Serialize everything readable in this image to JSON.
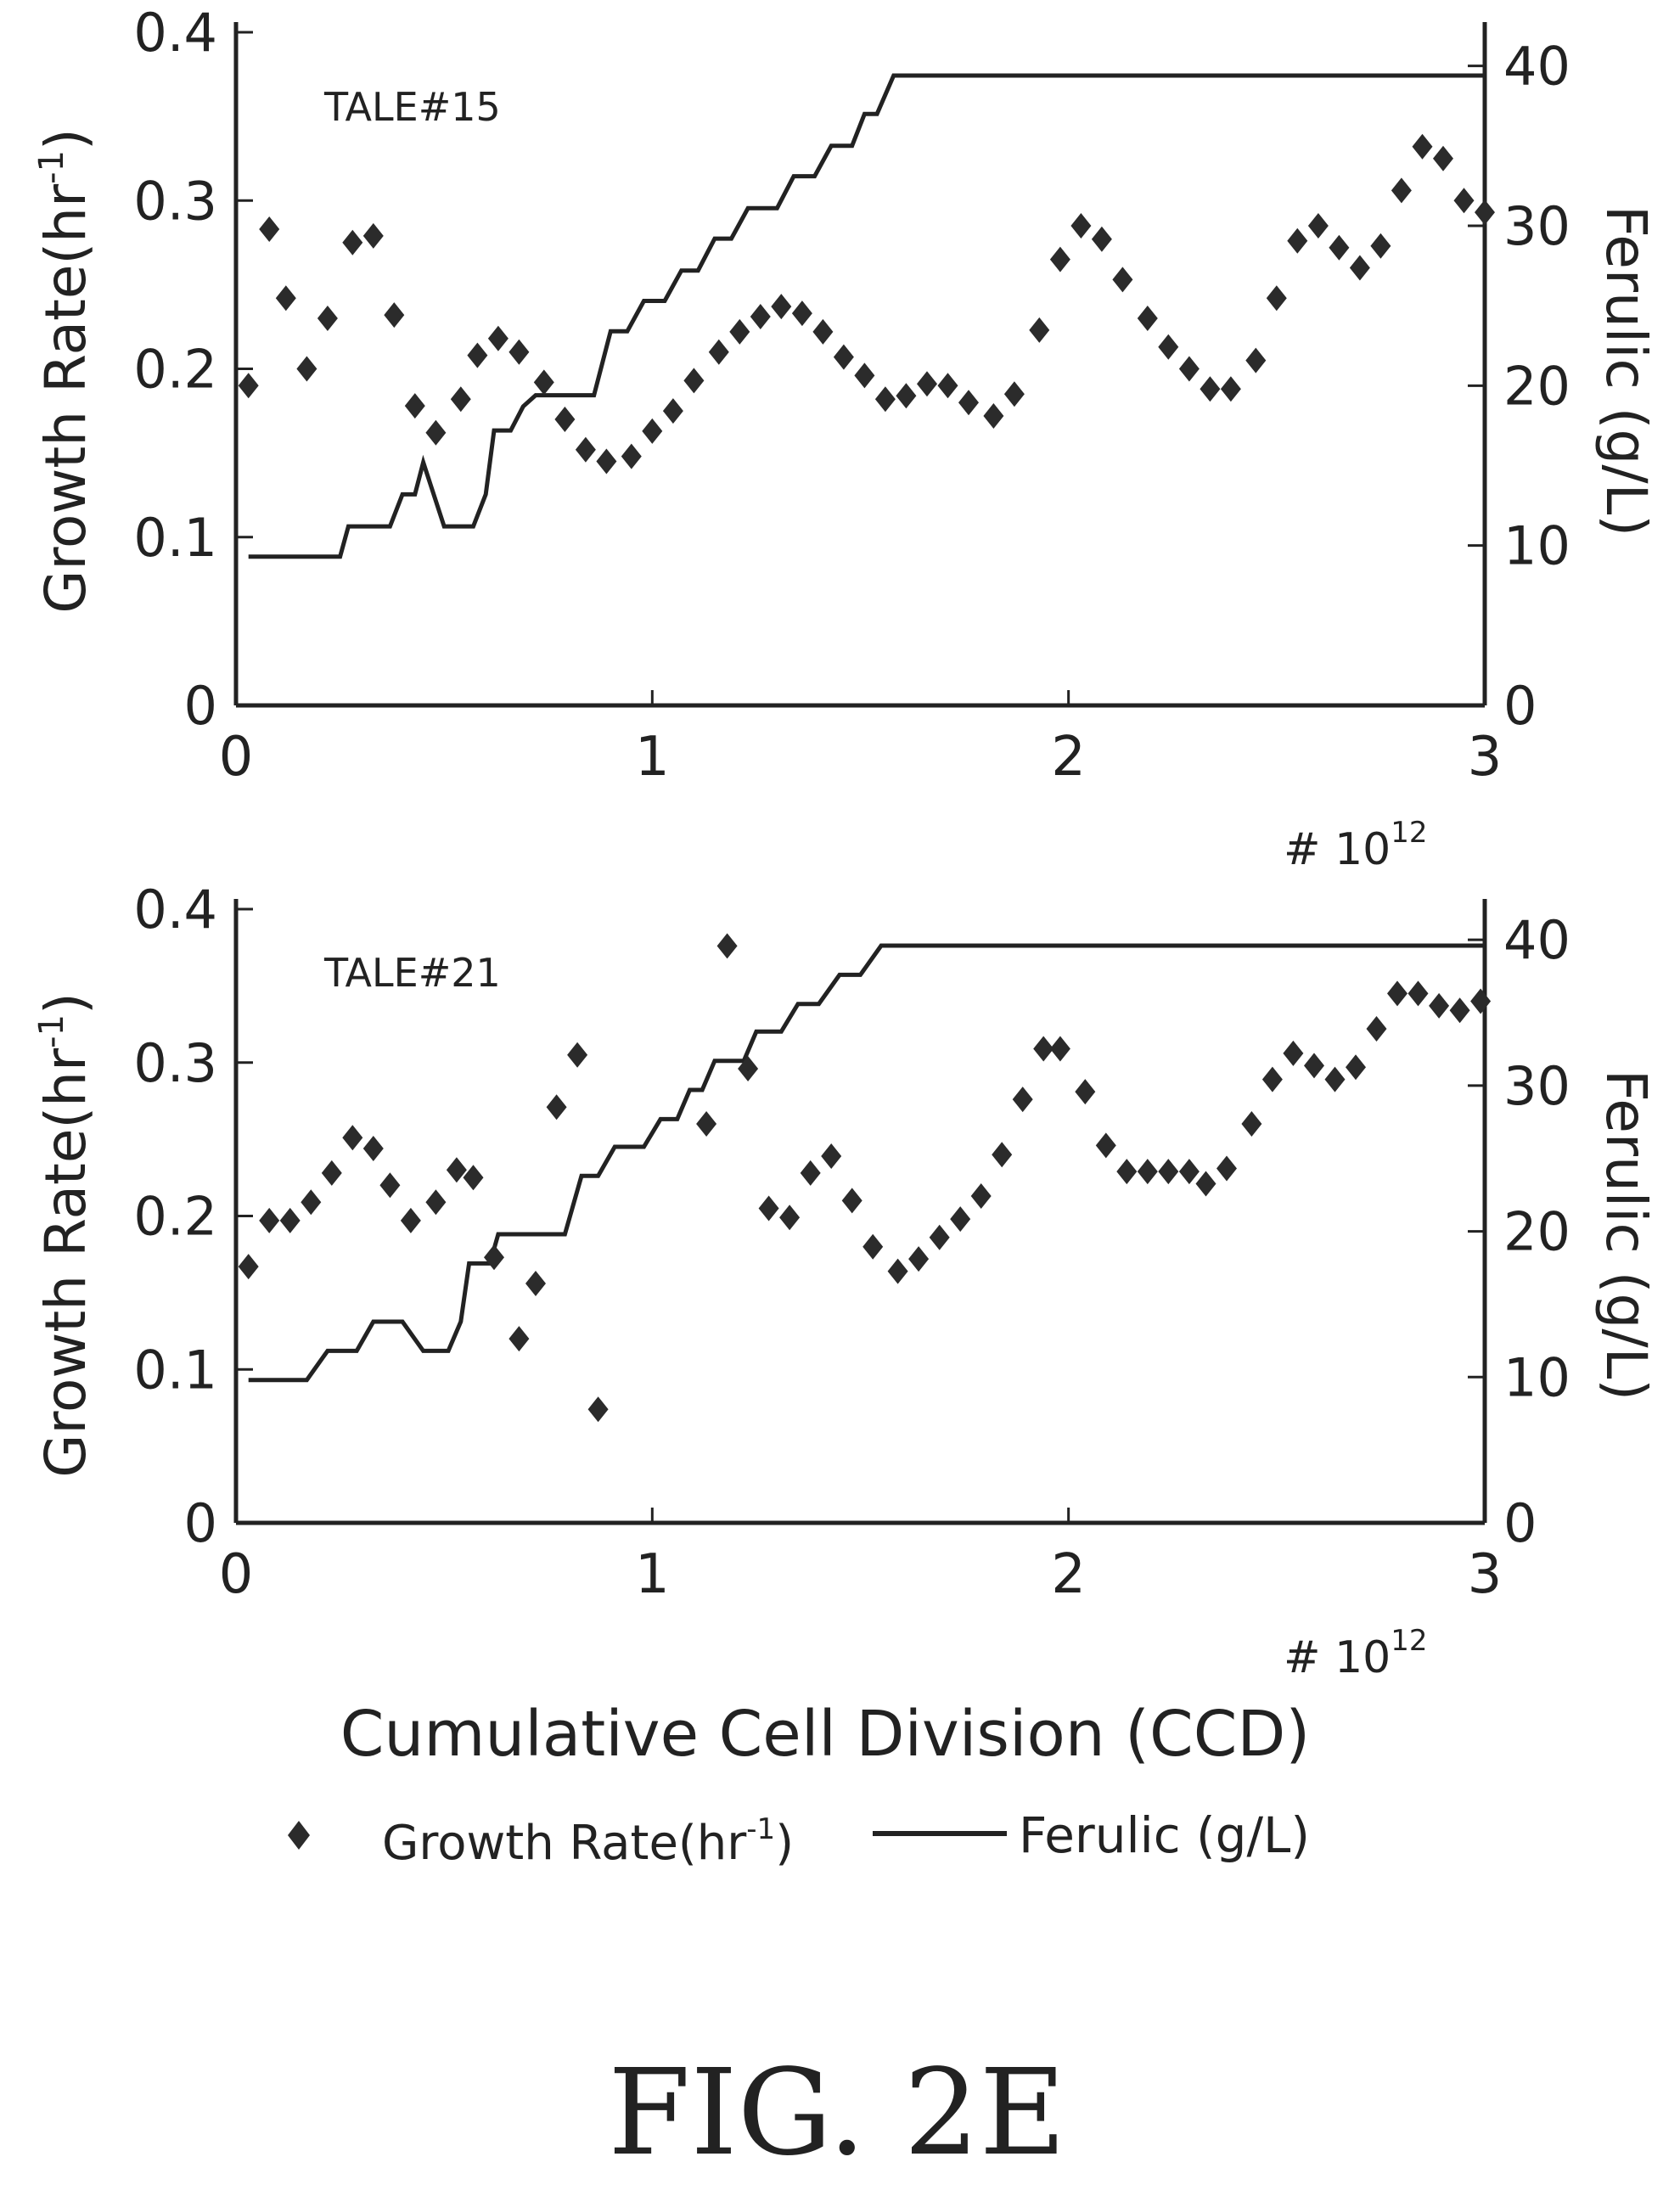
{
  "figure_label": "FIG. 2E",
  "xaxis_label": "Cumulative Cell Division (CCD)",
  "legend": {
    "growth_label": "Growth Rate(hr",
    "growth_exp": "-1",
    "growth_close": ")",
    "ferulic_label": "Ferulic (g/L)"
  },
  "chart_data": [
    {
      "type": "scatter+line",
      "annotation": "TALE#15",
      "ylabel_left": "Growth Rate(hr",
      "ylabel_left_exp": "-1",
      "ylabel_left_close": ")",
      "ylabel_right": "Ferulic (g/L)",
      "x_multiplier": "# 10",
      "x_multiplier_exp": "12",
      "xlim": [
        0,
        3
      ],
      "ylim_left": [
        0,
        0.4
      ],
      "ylim_right": [
        0,
        42
      ],
      "xticks": [
        "0",
        "1",
        "2",
        "3"
      ],
      "yticks_left": [
        "0",
        "0.1",
        "0.2",
        "0.3",
        "0.4"
      ],
      "yticks_right": [
        "0",
        "10",
        "20",
        "30",
        "40"
      ],
      "series": [
        {
          "name": "Growth Rate(hr-1)",
          "marker": "diamond",
          "points": [
            [
              0.03,
              0.19
            ],
            [
              0.08,
              0.283
            ],
            [
              0.12,
              0.242
            ],
            [
              0.17,
              0.2
            ],
            [
              0.22,
              0.23
            ],
            [
              0.28,
              0.275
            ],
            [
              0.33,
              0.279
            ],
            [
              0.38,
              0.232
            ],
            [
              0.43,
              0.178
            ],
            [
              0.48,
              0.162
            ],
            [
              0.54,
              0.182
            ],
            [
              0.58,
              0.208
            ],
            [
              0.63,
              0.218
            ],
            [
              0.68,
              0.21
            ],
            [
              0.74,
              0.192
            ],
            [
              0.79,
              0.17
            ],
            [
              0.84,
              0.152
            ],
            [
              0.89,
              0.145
            ],
            [
              0.95,
              0.148
            ],
            [
              1.0,
              0.163
            ],
            [
              1.05,
              0.175
            ],
            [
              1.1,
              0.193
            ],
            [
              1.16,
              0.21
            ],
            [
              1.21,
              0.222
            ],
            [
              1.26,
              0.231
            ],
            [
              1.31,
              0.237
            ],
            [
              1.36,
              0.233
            ],
            [
              1.41,
              0.222
            ],
            [
              1.46,
              0.207
            ],
            [
              1.51,
              0.196
            ],
            [
              1.56,
              0.182
            ],
            [
              1.61,
              0.184
            ],
            [
              1.66,
              0.191
            ],
            [
              1.71,
              0.19
            ],
            [
              1.76,
              0.18
            ],
            [
              1.82,
              0.172
            ],
            [
              1.87,
              0.185
            ],
            [
              1.93,
              0.223
            ],
            [
              1.98,
              0.265
            ],
            [
              2.03,
              0.285
            ],
            [
              2.08,
              0.277
            ],
            [
              2.13,
              0.253
            ],
            [
              2.19,
              0.23
            ],
            [
              2.24,
              0.213
            ],
            [
              2.29,
              0.2
            ],
            [
              2.34,
              0.188
            ],
            [
              2.39,
              0.188
            ],
            [
              2.45,
              0.205
            ],
            [
              2.5,
              0.242
            ],
            [
              2.55,
              0.276
            ],
            [
              2.6,
              0.285
            ],
            [
              2.65,
              0.272
            ],
            [
              2.7,
              0.26
            ],
            [
              2.75,
              0.273
            ],
            [
              2.8,
              0.306
            ],
            [
              2.85,
              0.332
            ],
            [
              2.9,
              0.325
            ],
            [
              2.95,
              0.3
            ],
            [
              3.0,
              0.293
            ]
          ]
        },
        {
          "name": "Ferulic (g/L)",
          "style": "line",
          "points": [
            [
              0.03,
              9.3
            ],
            [
              0.25,
              9.3
            ],
            [
              0.27,
              11.2
            ],
            [
              0.37,
              11.2
            ],
            [
              0.4,
              13.2
            ],
            [
              0.43,
              13.2
            ],
            [
              0.45,
              15.2
            ],
            [
              0.5,
              11.2
            ],
            [
              0.57,
              11.2
            ],
            [
              0.6,
              13.2
            ],
            [
              0.62,
              17.2
            ],
            [
              0.66,
              17.2
            ],
            [
              0.69,
              18.7
            ],
            [
              0.72,
              19.4
            ],
            [
              0.86,
              19.4
            ],
            [
              0.9,
              23.4
            ],
            [
              0.94,
              23.4
            ],
            [
              0.98,
              25.3
            ],
            [
              1.03,
              25.3
            ],
            [
              1.07,
              27.2
            ],
            [
              1.11,
              27.2
            ],
            [
              1.15,
              29.2
            ],
            [
              1.19,
              29.2
            ],
            [
              1.23,
              31.1
            ],
            [
              1.3,
              31.1
            ],
            [
              1.34,
              33.1
            ],
            [
              1.39,
              33.1
            ],
            [
              1.43,
              35.0
            ],
            [
              1.48,
              35.0
            ],
            [
              1.51,
              37.0
            ],
            [
              1.54,
              37.0
            ],
            [
              1.58,
              39.4
            ],
            [
              3.0,
              39.4
            ]
          ]
        }
      ]
    },
    {
      "type": "scatter+line",
      "annotation": "TALE#21",
      "ylabel_left": "Growth Rate(hr",
      "ylabel_left_exp": "-1",
      "ylabel_left_close": ")",
      "ylabel_right": "Ferulic (g/L)",
      "x_multiplier": "# 10",
      "x_multiplier_exp": "12",
      "xlim": [
        0,
        3
      ],
      "ylim_left": [
        0,
        0.4
      ],
      "ylim_right": [
        0,
        42
      ],
      "xticks": [
        "0",
        "1",
        "2",
        "3"
      ],
      "yticks_left": [
        "0",
        "0.1",
        "0.2",
        "0.3",
        "0.4"
      ],
      "yticks_right": [
        "0",
        "10",
        "20",
        "30",
        "40"
      ],
      "series": [
        {
          "name": "Growth Rate(hr-1)",
          "marker": "diamond",
          "points": [
            [
              0.03,
              0.167
            ],
            [
              0.08,
              0.197
            ],
            [
              0.13,
              0.197
            ],
            [
              0.18,
              0.209
            ],
            [
              0.23,
              0.228
            ],
            [
              0.28,
              0.251
            ],
            [
              0.33,
              0.244
            ],
            [
              0.37,
              0.22
            ],
            [
              0.42,
              0.197
            ],
            [
              0.48,
              0.209
            ],
            [
              0.53,
              0.23
            ],
            [
              0.57,
              0.225
            ],
            [
              0.62,
              0.173
            ],
            [
              0.68,
              0.12
            ],
            [
              0.72,
              0.156
            ],
            [
              0.77,
              0.271
            ],
            [
              0.82,
              0.305
            ],
            [
              0.87,
              0.074
            ],
            [
              1.13,
              0.26
            ],
            [
              1.18,
              0.376
            ],
            [
              1.23,
              0.296
            ],
            [
              1.28,
              0.205
            ],
            [
              1.33,
              0.199
            ],
            [
              1.38,
              0.228
            ],
            [
              1.43,
              0.239
            ],
            [
              1.48,
              0.21
            ],
            [
              1.53,
              0.18
            ],
            [
              1.59,
              0.164
            ],
            [
              1.64,
              0.172
            ],
            [
              1.69,
              0.186
            ],
            [
              1.74,
              0.198
            ],
            [
              1.79,
              0.213
            ],
            [
              1.84,
              0.24
            ],
            [
              1.89,
              0.276
            ],
            [
              1.94,
              0.309
            ],
            [
              1.98,
              0.309
            ],
            [
              2.04,
              0.281
            ],
            [
              2.09,
              0.246
            ],
            [
              2.14,
              0.229
            ],
            [
              2.19,
              0.229
            ],
            [
              2.24,
              0.229
            ],
            [
              2.29,
              0.229
            ],
            [
              2.33,
              0.221
            ],
            [
              2.38,
              0.231
            ],
            [
              2.44,
              0.26
            ],
            [
              2.49,
              0.289
            ],
            [
              2.54,
              0.306
            ],
            [
              2.59,
              0.298
            ],
            [
              2.64,
              0.289
            ],
            [
              2.69,
              0.297
            ],
            [
              2.74,
              0.322
            ],
            [
              2.79,
              0.345
            ],
            [
              2.84,
              0.345
            ],
            [
              2.89,
              0.337
            ],
            [
              2.94,
              0.334
            ],
            [
              2.99,
              0.34
            ]
          ]
        },
        {
          "name": "Ferulic (g/L)",
          "style": "line",
          "points": [
            [
              0.03,
              9.8
            ],
            [
              0.17,
              9.8
            ],
            [
              0.22,
              11.8
            ],
            [
              0.29,
              11.8
            ],
            [
              0.33,
              13.8
            ],
            [
              0.4,
              13.8
            ],
            [
              0.45,
              11.8
            ],
            [
              0.51,
              11.8
            ],
            [
              0.54,
              13.8
            ],
            [
              0.56,
              17.8
            ],
            [
              0.61,
              17.8
            ],
            [
              0.63,
              19.8
            ],
            [
              0.79,
              19.8
            ],
            [
              0.83,
              23.8
            ],
            [
              0.87,
              23.8
            ],
            [
              0.91,
              25.8
            ],
            [
              0.98,
              25.8
            ],
            [
              1.02,
              27.7
            ],
            [
              1.06,
              27.7
            ],
            [
              1.09,
              29.7
            ],
            [
              1.12,
              29.7
            ],
            [
              1.15,
              31.7
            ],
            [
              1.22,
              31.7
            ],
            [
              1.25,
              33.7
            ],
            [
              1.31,
              33.7
            ],
            [
              1.35,
              35.6
            ],
            [
              1.4,
              35.6
            ],
            [
              1.45,
              37.6
            ],
            [
              1.5,
              37.6
            ],
            [
              1.55,
              39.6
            ],
            [
              3.0,
              39.6
            ]
          ]
        }
      ]
    }
  ]
}
